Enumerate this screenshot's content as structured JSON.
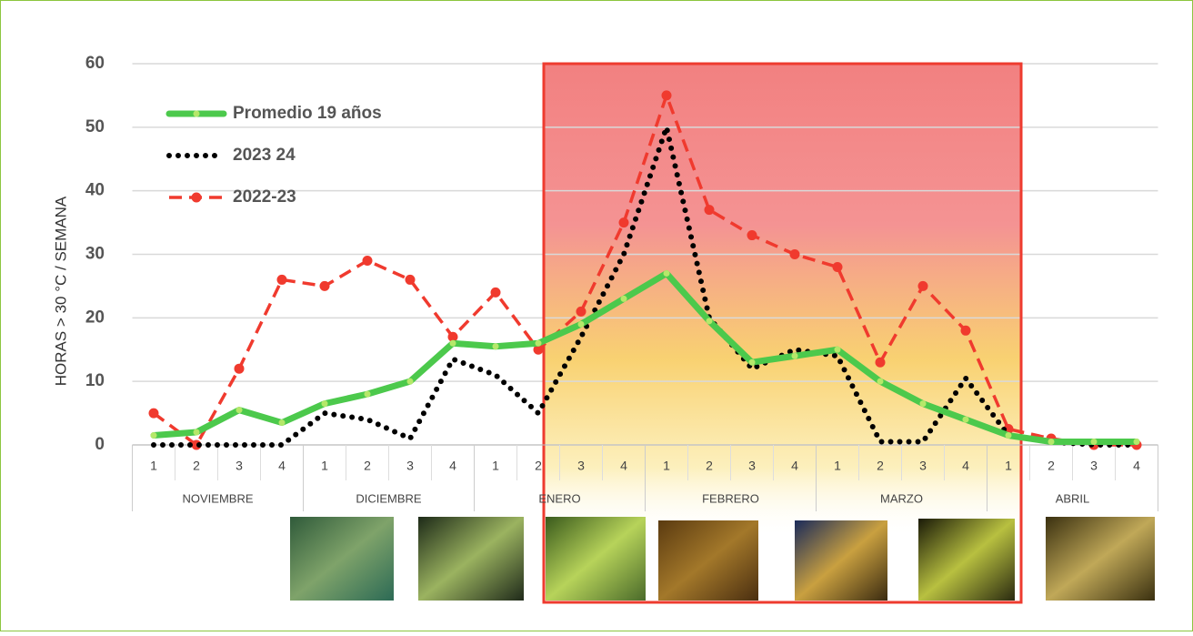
{
  "chart_data": {
    "type": "line",
    "y_label": "HORAS > 30 °C / SEMANA",
    "categories": [
      "1",
      "2",
      "3",
      "4",
      "1",
      "2",
      "3",
      "4",
      "1",
      "2",
      "3",
      "4",
      "1",
      "2",
      "3",
      "4",
      "1",
      "2",
      "3",
      "4",
      "1",
      "2",
      "3",
      "4"
    ],
    "groups": [
      "NOVIEMBRE",
      "DICIEMBRE",
      "ENERO",
      "FEBRERO",
      "MARZO",
      "ABRIL"
    ],
    "series": [
      {
        "name": "Promedio 19 años",
        "color": "#4cc94c",
        "style": "solid",
        "values": [
          1.5,
          2,
          5.5,
          3.5,
          6.5,
          8,
          10,
          16,
          15.5,
          16,
          19,
          23,
          27,
          19.5,
          13,
          14,
          15,
          10,
          6.5,
          4,
          1.5,
          0.5,
          0.5,
          0.5
        ]
      },
      {
        "name": "2023 24",
        "color": "#000000",
        "style": "dotted",
        "values": [
          0,
          0,
          0,
          0,
          5,
          4,
          1,
          13.5,
          11,
          5,
          17,
          30,
          50,
          20,
          12,
          15,
          14,
          0.5,
          0.5,
          10.5,
          1.5,
          0.5,
          0,
          0
        ]
      },
      {
        "name": "2022-23",
        "color": "#f03a2e",
        "style": "dashed",
        "values": [
          5,
          0,
          12,
          26,
          25,
          29,
          26,
          17,
          24,
          15,
          21,
          35,
          55,
          37,
          33,
          30,
          28,
          13,
          25,
          18,
          2.5,
          1,
          0,
          0
        ]
      }
    ],
    "ylim": [
      0,
      60
    ],
    "yticks": [
      0,
      10,
      20,
      30,
      40,
      50,
      60
    ],
    "grid": true
  }
}
